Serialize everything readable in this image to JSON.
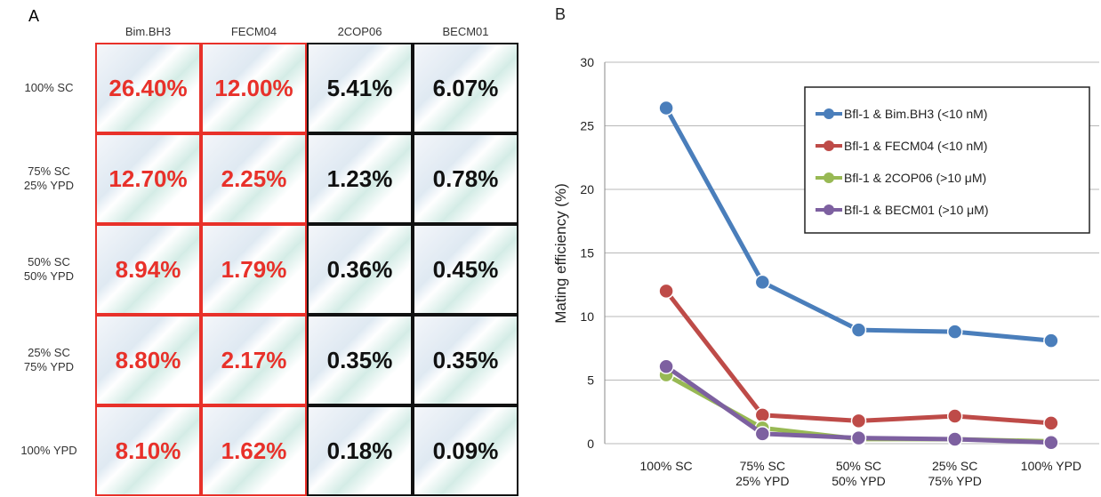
{
  "panel_a": {
    "label": "A",
    "columns": [
      "Bim.BH3",
      "FECM04",
      "2COP06",
      "BECM01"
    ],
    "rows": [
      {
        "label": [
          "100% SC"
        ],
        "cells": [
          "26.40%",
          "12.00%",
          "5.41%",
          "6.07%"
        ]
      },
      {
        "label": [
          "75% SC",
          "25% YPD"
        ],
        "cells": [
          "12.70%",
          "2.25%",
          "1.23%",
          "0.78%"
        ]
      },
      {
        "label": [
          "50% SC",
          "50% YPD"
        ],
        "cells": [
          "8.94%",
          "1.79%",
          "0.36%",
          "0.45%"
        ]
      },
      {
        "label": [
          "25% SC",
          "75% YPD"
        ],
        "cells": [
          "8.80%",
          "2.17%",
          "0.35%",
          "0.35%"
        ]
      },
      {
        "label": [
          "100% YPD"
        ],
        "cells": [
          "8.10%",
          "1.62%",
          "0.18%",
          "0.09%"
        ]
      }
    ]
  },
  "chart_data": {
    "type": "line",
    "panel_label": "B",
    "y_label": "Mating efficiency (%)",
    "categories": [
      [
        "100% SC"
      ],
      [
        "75% SC",
        "25% YPD"
      ],
      [
        "50% SC",
        "50% YPD"
      ],
      [
        "25% SC",
        "75% YPD"
      ],
      [
        "100% YPD"
      ]
    ],
    "series": [
      {
        "name": "Bfl-1 & Bim.BH3 (<10 nM)",
        "color": "#4a7ebb",
        "values": [
          26.4,
          12.7,
          8.94,
          8.8,
          8.1
        ]
      },
      {
        "name": "Bfl-1 & FECM04 (<10 nM)",
        "color": "#be4b48",
        "values": [
          12.0,
          2.25,
          1.79,
          2.17,
          1.62
        ]
      },
      {
        "name": "Bfl-1 & 2COP06 (>10 μM)",
        "color": "#98b954",
        "values": [
          5.41,
          1.23,
          0.36,
          0.35,
          0.18
        ]
      },
      {
        "name": "Bfl-1 & BECM01 (>10 μM)",
        "color": "#7d60a0",
        "values": [
          6.07,
          0.78,
          0.45,
          0.35,
          0.09
        ]
      }
    ],
    "ylim": [
      0,
      30
    ],
    "yticks": [
      0,
      5,
      10,
      15,
      20,
      25,
      30
    ],
    "grid": true,
    "legend": "upper right"
  }
}
